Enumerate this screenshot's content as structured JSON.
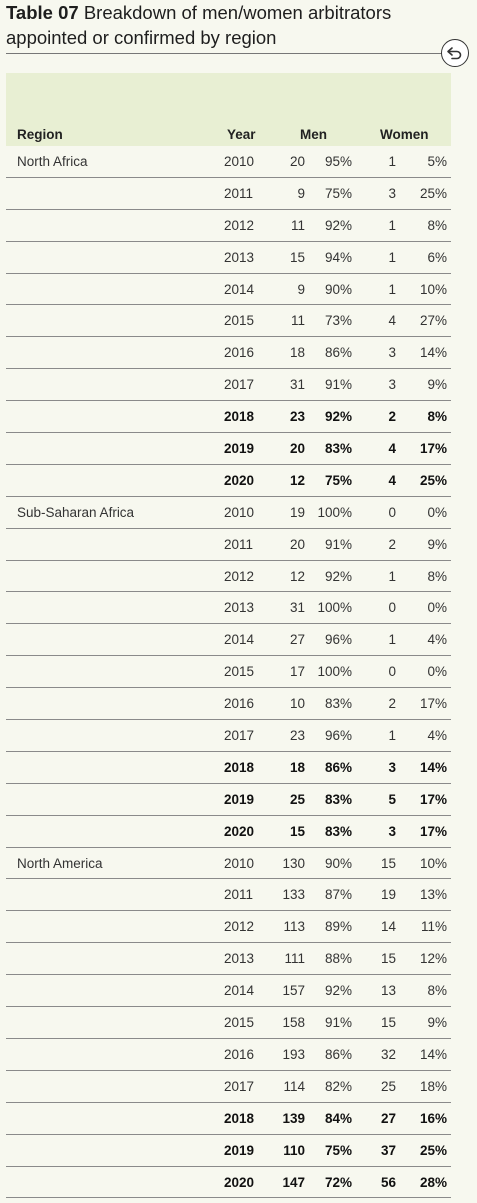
{
  "title": {
    "number": "Table 07",
    "text": "Breakdown of men/women arbitrators appointed or confirmed by region"
  },
  "back_button_icon": "back-arrow-icon",
  "columns": {
    "region": "Region",
    "year": "Year",
    "men": "Men",
    "women": "Women"
  },
  "rows": [
    {
      "region": "North Africa",
      "year": "2010",
      "men": "20",
      "men_pct": "95%",
      "women": "1",
      "women_pct": "5%",
      "bold": false
    },
    {
      "region": "",
      "year": "2011",
      "men": "9",
      "men_pct": "75%",
      "women": "3",
      "women_pct": "25%",
      "bold": false
    },
    {
      "region": "",
      "year": "2012",
      "men": "11",
      "men_pct": "92%",
      "women": "1",
      "women_pct": "8%",
      "bold": false
    },
    {
      "region": "",
      "year": "2013",
      "men": "15",
      "men_pct": "94%",
      "women": "1",
      "women_pct": "6%",
      "bold": false
    },
    {
      "region": "",
      "year": "2014",
      "men": "9",
      "men_pct": "90%",
      "women": "1",
      "women_pct": "10%",
      "bold": false
    },
    {
      "region": "",
      "year": "2015",
      "men": "11",
      "men_pct": "73%",
      "women": "4",
      "women_pct": "27%",
      "bold": false
    },
    {
      "region": "",
      "year": "2016",
      "men": "18",
      "men_pct": "86%",
      "women": "3",
      "women_pct": "14%",
      "bold": false
    },
    {
      "region": "",
      "year": "2017",
      "men": "31",
      "men_pct": "91%",
      "women": "3",
      "women_pct": "9%",
      "bold": false
    },
    {
      "region": "",
      "year": "2018",
      "men": "23",
      "men_pct": "92%",
      "women": "2",
      "women_pct": "8%",
      "bold": true
    },
    {
      "region": "",
      "year": "2019",
      "men": "20",
      "men_pct": "83%",
      "women": "4",
      "women_pct": "17%",
      "bold": true
    },
    {
      "region": "",
      "year": "2020",
      "men": "12",
      "men_pct": "75%",
      "women": "4",
      "women_pct": "25%",
      "bold": true
    },
    {
      "region": "Sub-Saharan Africa",
      "year": "2010",
      "men": "19",
      "men_pct": "100%",
      "women": "0",
      "women_pct": "0%",
      "bold": false
    },
    {
      "region": "",
      "year": "2011",
      "men": "20",
      "men_pct": "91%",
      "women": "2",
      "women_pct": "9%",
      "bold": false
    },
    {
      "region": "",
      "year": "2012",
      "men": "12",
      "men_pct": "92%",
      "women": "1",
      "women_pct": "8%",
      "bold": false
    },
    {
      "region": "",
      "year": "2013",
      "men": "31",
      "men_pct": "100%",
      "women": "0",
      "women_pct": "0%",
      "bold": false
    },
    {
      "region": "",
      "year": "2014",
      "men": "27",
      "men_pct": "96%",
      "women": "1",
      "women_pct": "4%",
      "bold": false
    },
    {
      "region": "",
      "year": "2015",
      "men": "17",
      "men_pct": "100%",
      "women": "0",
      "women_pct": "0%",
      "bold": false
    },
    {
      "region": "",
      "year": "2016",
      "men": "10",
      "men_pct": "83%",
      "women": "2",
      "women_pct": "17%",
      "bold": false
    },
    {
      "region": "",
      "year": "2017",
      "men": "23",
      "men_pct": "96%",
      "women": "1",
      "women_pct": "4%",
      "bold": false
    },
    {
      "region": "",
      "year": "2018",
      "men": "18",
      "men_pct": "86%",
      "women": "3",
      "women_pct": "14%",
      "bold": true
    },
    {
      "region": "",
      "year": "2019",
      "men": "25",
      "men_pct": "83%",
      "women": "5",
      "women_pct": "17%",
      "bold": true
    },
    {
      "region": "",
      "year": "2020",
      "men": "15",
      "men_pct": "83%",
      "women": "3",
      "women_pct": "17%",
      "bold": true
    },
    {
      "region": "North America",
      "year": "2010",
      "men": "130",
      "men_pct": "90%",
      "women": "15",
      "women_pct": "10%",
      "bold": false
    },
    {
      "region": "",
      "year": "2011",
      "men": "133",
      "men_pct": "87%",
      "women": "19",
      "women_pct": "13%",
      "bold": false
    },
    {
      "region": "",
      "year": "2012",
      "men": "113",
      "men_pct": "89%",
      "women": "14",
      "women_pct": "11%",
      "bold": false
    },
    {
      "region": "",
      "year": "2013",
      "men": "111",
      "men_pct": "88%",
      "women": "15",
      "women_pct": "12%",
      "bold": false
    },
    {
      "region": "",
      "year": "2014",
      "men": "157",
      "men_pct": "92%",
      "women": "13",
      "women_pct": "8%",
      "bold": false
    },
    {
      "region": "",
      "year": "2015",
      "men": "158",
      "men_pct": "91%",
      "women": "15",
      "women_pct": "9%",
      "bold": false
    },
    {
      "region": "",
      "year": "2016",
      "men": "193",
      "men_pct": "86%",
      "women": "32",
      "women_pct": "14%",
      "bold": false
    },
    {
      "region": "",
      "year": "2017",
      "men": "114",
      "men_pct": "82%",
      "women": "25",
      "women_pct": "18%",
      "bold": false
    },
    {
      "region": "",
      "year": "2018",
      "men": "139",
      "men_pct": "84%",
      "women": "27",
      "women_pct": "16%",
      "bold": true
    },
    {
      "region": "",
      "year": "2019",
      "men": "110",
      "men_pct": "75%",
      "women": "37",
      "women_pct": "25%",
      "bold": true
    },
    {
      "region": "",
      "year": "2020",
      "men": "147",
      "men_pct": "72%",
      "women": "56",
      "women_pct": "28%",
      "bold": true
    }
  ]
}
